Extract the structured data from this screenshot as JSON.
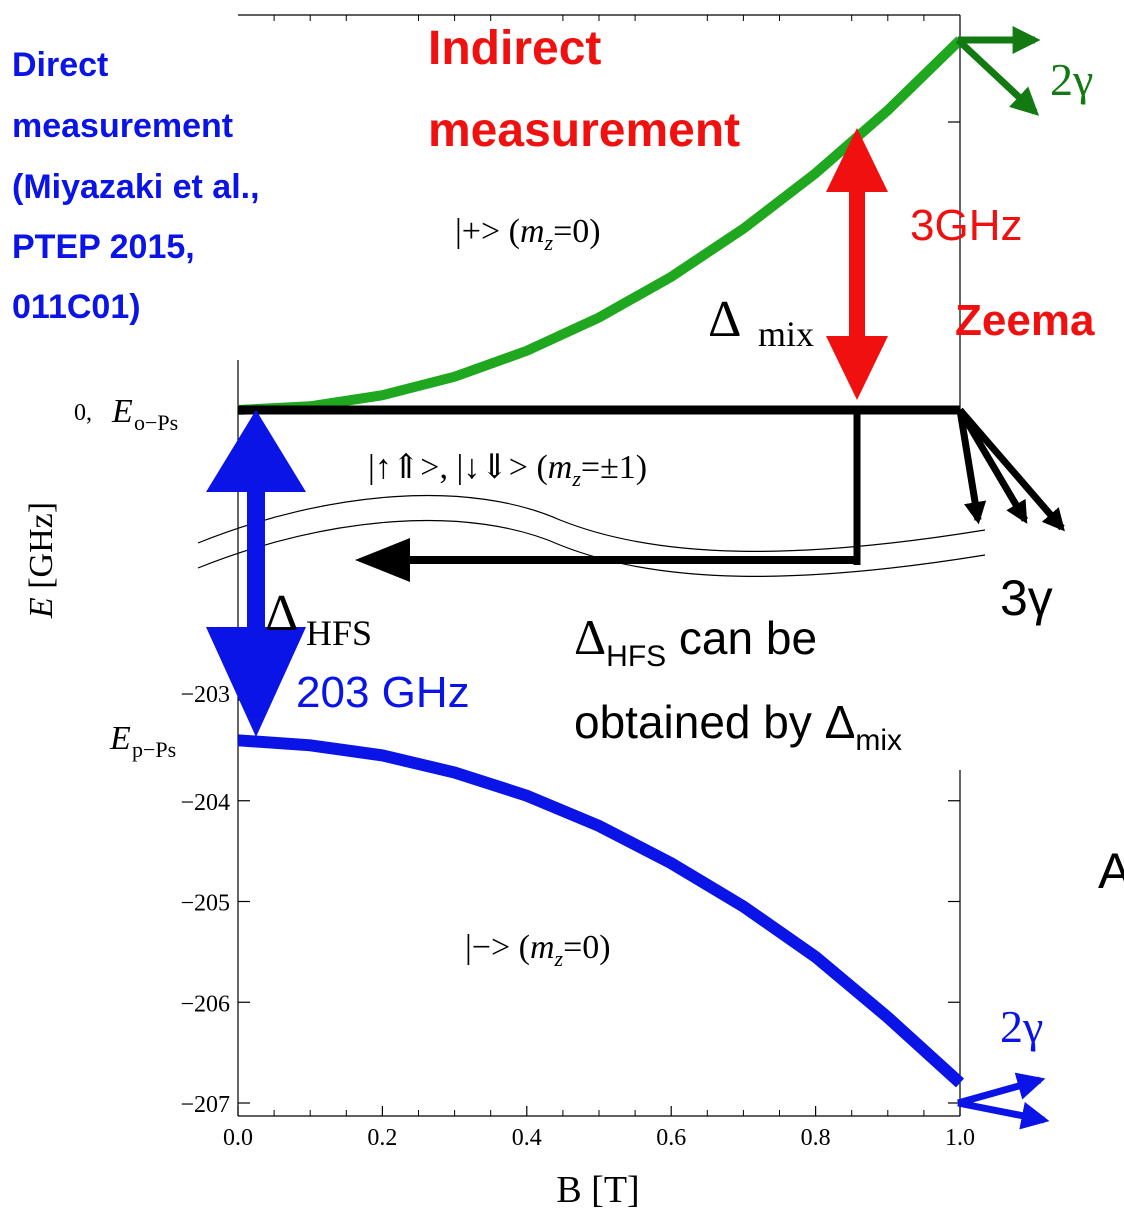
{
  "chart_data": {
    "type": "line",
    "xlabel": "B [T]",
    "ylabel": "E [GHz]",
    "xlim": [
      0.0,
      1.0
    ],
    "grid": false,
    "x_ticks": [
      "0.0",
      "0.2",
      "0.4",
      "0.6",
      "0.8",
      "1.0"
    ],
    "y_ticks_lower": [
      "−203",
      "−204",
      "−205",
      "−206",
      "−207"
    ],
    "y_tick_zero": "0,",
    "series": [
      {
        "key": "plus",
        "color": "#1fa81f",
        "x": [
          0.0,
          0.1,
          0.2,
          0.3,
          0.4,
          0.5,
          0.6,
          0.7,
          0.8,
          0.9,
          1.0
        ],
        "y": [
          0.0,
          0.03,
          0.12,
          0.27,
          0.48,
          0.75,
          1.08,
          1.47,
          1.92,
          2.43,
          3.0
        ]
      },
      {
        "key": "ortho",
        "color": "#000000",
        "x": [
          0.0,
          1.0
        ],
        "y": [
          0.0,
          0.0
        ]
      },
      {
        "key": "minus",
        "color": "#0a14e6",
        "x": [
          0.0,
          0.1,
          0.2,
          0.3,
          0.4,
          0.5,
          0.6,
          0.7,
          0.8,
          0.9,
          1.0
        ],
        "y": [
          -203.4,
          -203.45,
          -203.55,
          -203.72,
          -203.95,
          -204.25,
          -204.62,
          -205.05,
          -205.55,
          -206.15,
          -206.8
        ]
      }
    ],
    "curve_labels": {
      "plus": "|+>   (m_z=0)",
      "ortho": "|↑⇑>, |↓⇓>   (m_z=±1)",
      "minus": "|−>  (m_z=0)"
    }
  },
  "labels": {
    "direct": [
      "Direct",
      "measurement",
      "(Miyazaki et al.,",
      "PTEP 2015,",
      "011C01)"
    ],
    "indirect": [
      "Indirect",
      "measurement"
    ],
    "zeeman": "Zeema",
    "three_ghz": "3GHz",
    "delta_mix": "Δ",
    "delta_mix_sub": "mix",
    "delta_hfs": "Δ",
    "delta_hfs_sub": "HFS",
    "two03": "203 GHz",
    "hfs_line1_prefix": "Δ",
    "hfs_line1_sub": "HFS",
    "hfs_line1_suffix": " can be",
    "hfs_line2_prefix": "obtained by Δ",
    "hfs_line2_sub": "mix",
    "two_gamma": "2γ",
    "three_gamma": "3γ",
    "cut_letter": "A",
    "eo_ps_sub": "o−Ps",
    "ep_ps_sub": "p−Ps",
    "e_letter": "E"
  },
  "colors": {
    "plus": "#1fa81f",
    "minus": "#0a14e6",
    "red": "#f01010",
    "blue_text": "#0a14e6",
    "dark_green": "#137a13"
  }
}
